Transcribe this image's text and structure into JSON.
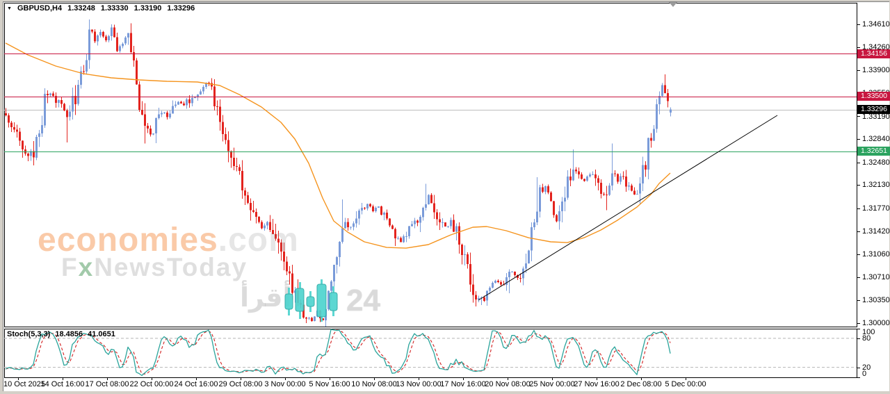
{
  "header": {
    "dropdown_icon": "▼",
    "symbol_period": "GBPUSD,H4",
    "open": "1.33248",
    "high": "1.33330",
    "low": "1.33190",
    "close": "1.33296"
  },
  "indicator": {
    "label": "Stoch(5,3,3)",
    "main_value": "18.4856",
    "signal_value": "41.0651",
    "scale": [
      "100",
      "80",
      "20",
      "0"
    ],
    "upper_level": 80,
    "lower_level": 20
  },
  "watermarks": {
    "brand_left": "economies",
    "brand_right": ".com",
    "news_f": "F",
    "news_x": "x",
    "news_rest": "NewsToday",
    "arabic": "أقرأ",
    "number": "24"
  },
  "markers": {
    "shift_icon": "down-triangle"
  },
  "chart_data": {
    "type": "candlestick",
    "symbol": "GBPUSD",
    "timeframe": "H4",
    "title": "GBPUSD,H4  1.33248 1.33330 1.33190 1.33296",
    "current_bar": {
      "open": 1.33248,
      "high": 1.3333,
      "low": 1.3319,
      "close": 1.33296
    },
    "ylim": [
      1.29946,
      1.34942
    ],
    "y_ticks": [
      1.3461,
      1.3426,
      1.339,
      1.3355,
      1.3319,
      1.3284,
      1.3248,
      1.3213,
      1.3177,
      1.3142,
      1.3106,
      1.3071,
      1.3035,
      1.3
    ],
    "x_labels": [
      "10 Oct 2025",
      "14 Oct 16:00",
      "17 Oct 08:00",
      "22 Oct 00:00",
      "24 Oct 16:00",
      "29 Oct 08:00",
      "3 Nov 00:00",
      "5 Nov 16:00",
      "10 Nov 08:00",
      "13 Nov 00:00",
      "17 Nov 16:00",
      "20 Nov 08:00",
      "25 Nov 00:00",
      "27 Nov 16:00",
      "2 Dec 08:00",
      "5 Dec 00:00"
    ],
    "levels": [
      {
        "price": 1.34156,
        "label": "1.34156",
        "color": "#c8163f",
        "type": "resistance"
      },
      {
        "price": 1.335,
        "label": "1.33500",
        "color": "#c8163f",
        "type": "resistance"
      },
      {
        "price": 1.33296,
        "label": "1.33296",
        "color": "#000000",
        "line_color": "#bdbdbd",
        "type": "current-price"
      },
      {
        "price": 1.32651,
        "label": "1.32651",
        "color": "#2ba35f",
        "type": "support"
      }
    ],
    "trendline": {
      "from": {
        "bar": 170,
        "price": 1.30354
      },
      "to": {
        "bar": 277.5,
        "price": 1.33206
      },
      "color": "#000000"
    },
    "moving_average": {
      "color": "#f5941e",
      "anchors_bar_price": [
        [
          0,
          1.3432
        ],
        [
          8,
          1.34138
        ],
        [
          18,
          1.33967
        ],
        [
          28,
          1.33849
        ],
        [
          38,
          1.33784
        ],
        [
          48,
          1.33752
        ],
        [
          58,
          1.33731
        ],
        [
          69,
          1.3372
        ],
        [
          77,
          1.33667
        ],
        [
          84,
          1.33527
        ],
        [
          92,
          1.33334
        ],
        [
          99,
          1.33098
        ],
        [
          104,
          1.32841
        ],
        [
          109,
          1.32466
        ],
        [
          114,
          1.3193
        ],
        [
          118,
          1.31576
        ],
        [
          123,
          1.31404
        ],
        [
          129,
          1.31254
        ],
        [
          137,
          1.31168
        ],
        [
          144,
          1.31157
        ],
        [
          152,
          1.31211
        ],
        [
          160,
          1.31361
        ],
        [
          168,
          1.31479
        ],
        [
          173,
          1.3149
        ],
        [
          180,
          1.31426
        ],
        [
          188,
          1.31318
        ],
        [
          196,
          1.31254
        ],
        [
          202,
          1.31243
        ],
        [
          208,
          1.31318
        ],
        [
          214,
          1.31436
        ],
        [
          220,
          1.31587
        ],
        [
          227,
          1.3179
        ],
        [
          232,
          1.31983
        ],
        [
          235,
          1.32155
        ],
        [
          239,
          1.32316
        ]
      ]
    },
    "bars_total": 240,
    "price_path_anchors": [
      [
        0,
        1.332
      ],
      [
        2,
        1.3305
      ],
      [
        4,
        1.3288
      ],
      [
        6,
        1.3272
      ],
      [
        8,
        1.326
      ],
      [
        10,
        1.3268
      ],
      [
        12,
        1.3296
      ],
      [
        14,
        1.3342
      ],
      [
        16,
        1.3352
      ],
      [
        18,
        1.3344
      ],
      [
        20,
        1.3336
      ],
      [
        22,
        1.332
      ],
      [
        24,
        1.3342
      ],
      [
        26,
        1.336
      ],
      [
        28,
        1.3398
      ],
      [
        30,
        1.3442
      ],
      [
        31,
        1.3455
      ],
      [
        32,
        1.3438
      ],
      [
        34,
        1.345
      ],
      [
        36,
        1.3438
      ],
      [
        38,
        1.3452
      ],
      [
        40,
        1.342
      ],
      [
        42,
        1.3438
      ],
      [
        44,
        1.3442
      ],
      [
        46,
        1.34
      ],
      [
        48,
        1.334
      ],
      [
        50,
        1.3298
      ],
      [
        52,
        1.329
      ],
      [
        54,
        1.3312
      ],
      [
        56,
        1.3328
      ],
      [
        58,
        1.332
      ],
      [
        60,
        1.3332
      ],
      [
        62,
        1.334
      ],
      [
        64,
        1.3334
      ],
      [
        66,
        1.3346
      ],
      [
        68,
        1.3354
      ],
      [
        70,
        1.336
      ],
      [
        72,
        1.3372
      ],
      [
        74,
        1.3358
      ],
      [
        76,
        1.3338
      ],
      [
        78,
        1.3305
      ],
      [
        80,
        1.3272
      ],
      [
        82,
        1.3246
      ],
      [
        84,
        1.3225
      ],
      [
        86,
        1.3205
      ],
      [
        88,
        1.318
      ],
      [
        90,
        1.316
      ],
      [
        92,
        1.3148
      ],
      [
        94,
        1.3158
      ],
      [
        96,
        1.3138
      ],
      [
        98,
        1.3116
      ],
      [
        100,
        1.3096
      ],
      [
        102,
        1.3072
      ],
      [
        104,
        1.3046
      ],
      [
        106,
        1.3022
      ],
      [
        108,
        1.301
      ],
      [
        110,
        1.3006
      ],
      [
        112,
        1.3018
      ],
      [
        114,
        1.301
      ],
      [
        116,
        1.3048
      ],
      [
        118,
        1.3096
      ],
      [
        120,
        1.3132
      ],
      [
        122,
        1.315
      ],
      [
        124,
        1.3148
      ],
      [
        126,
        1.3162
      ],
      [
        128,
        1.3178
      ],
      [
        130,
        1.3182
      ],
      [
        132,
        1.3172
      ],
      [
        134,
        1.3178
      ],
      [
        136,
        1.3162
      ],
      [
        138,
        1.3152
      ],
      [
        140,
        1.3138
      ],
      [
        142,
        1.3126
      ],
      [
        144,
        1.3142
      ],
      [
        146,
        1.3155
      ],
      [
        148,
        1.315
      ],
      [
        150,
        1.3178
      ],
      [
        152,
        1.3196
      ],
      [
        154,
        1.318
      ],
      [
        156,
        1.3162
      ],
      [
        158,
        1.315
      ],
      [
        160,
        1.3156
      ],
      [
        162,
        1.314
      ],
      [
        164,
        1.3115
      ],
      [
        166,
        1.308
      ],
      [
        168,
        1.3052
      ],
      [
        170,
        1.304
      ],
      [
        172,
        1.304
      ],
      [
        174,
        1.3055
      ],
      [
        176,
        1.3068
      ],
      [
        178,
        1.3058
      ],
      [
        180,
        1.307
      ],
      [
        182,
        1.308
      ],
      [
        184,
        1.3068
      ],
      [
        186,
        1.3085
      ],
      [
        188,
        1.3112
      ],
      [
        190,
        1.316
      ],
      [
        192,
        1.3195
      ],
      [
        194,
        1.3205
      ],
      [
        196,
        1.318
      ],
      [
        198,
        1.316
      ],
      [
        200,
        1.3185
      ],
      [
        202,
        1.3215
      ],
      [
        204,
        1.324
      ],
      [
        206,
        1.3232
      ],
      [
        208,
        1.322
      ],
      [
        210,
        1.3232
      ],
      [
        212,
        1.3222
      ],
      [
        214,
        1.32
      ],
      [
        216,
        1.3192
      ],
      [
        218,
        1.323
      ],
      [
        220,
        1.322
      ],
      [
        222,
        1.3226
      ],
      [
        224,
        1.3205
      ],
      [
        226,
        1.3195
      ],
      [
        228,
        1.3215
      ],
      [
        230,
        1.3248
      ],
      [
        232,
        1.3295
      ],
      [
        234,
        1.3332
      ],
      [
        236,
        1.3362
      ],
      [
        238,
        1.3348
      ],
      [
        239,
        1.33296
      ]
    ],
    "wick_overrides": {
      "8": {
        "low": 1.325
      },
      "22": {
        "low": 1.3279
      },
      "30": {
        "high": 1.34685
      },
      "50": {
        "low": 1.3277
      },
      "110": {
        "low": 1.3002
      },
      "114": {
        "low": 1.3005
      },
      "121": {
        "high": 1.3191
      },
      "151": {
        "high": 1.3215
      },
      "171": {
        "low": 1.3028
      },
      "181": {
        "low": 1.3046
      },
      "191": {
        "high": 1.3225
      },
      "204": {
        "high": 1.3268
      },
      "216": {
        "low": 1.3174
      },
      "218": {
        "high": 1.3277
      },
      "237": {
        "high": 1.3384
      },
      "239": {
        "open": 1.33248,
        "high": 1.3333,
        "low": 1.3319,
        "close": 1.33296
      }
    },
    "style": {
      "bull_color": "#7a9bd9",
      "bear_color": "#e3231e",
      "ma_color": "#f5941e",
      "trendline_color": "#000000",
      "stoch_main_color": "#2aa49b",
      "stoch_signal_color": "#d21f1f",
      "level_red": "#c8163f",
      "level_green": "#2ba35f",
      "current_line_color": "#bdbdbd",
      "stoch_level_color": "#b5b5b5"
    }
  }
}
